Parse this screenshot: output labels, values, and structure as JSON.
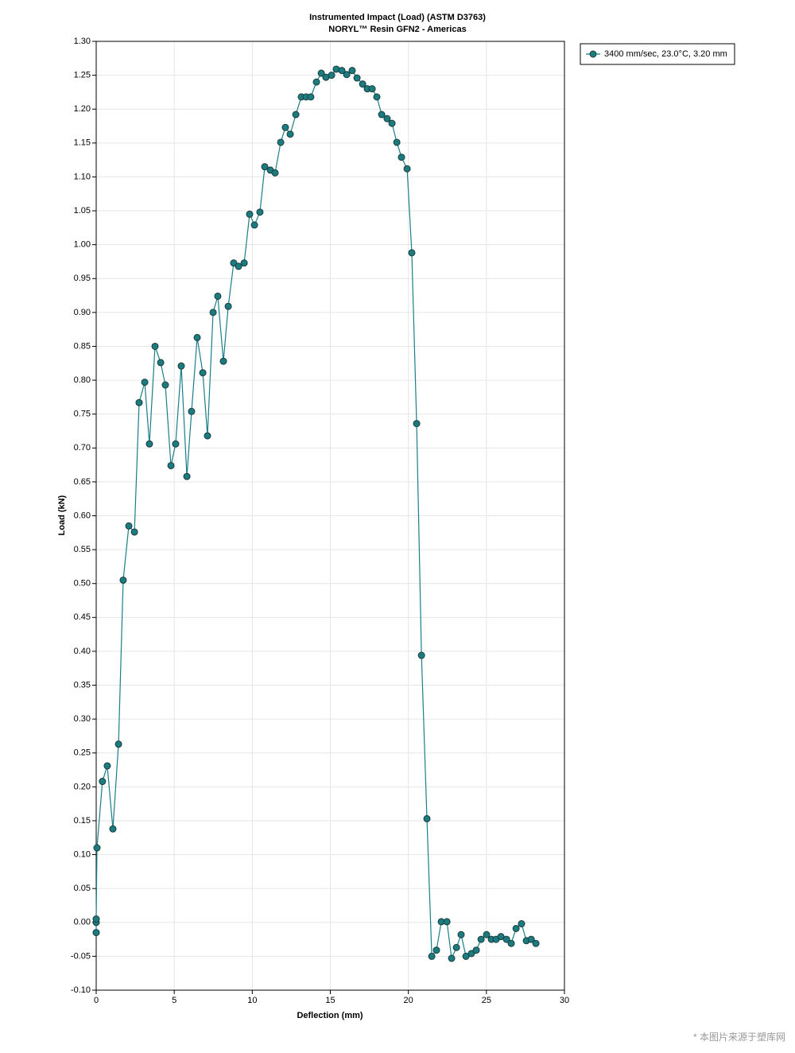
{
  "chart_data": {
    "type": "line",
    "title": "Instrumented Impact (Load) (ASTM D3763)",
    "subtitle": "NORYL™ Resin GFN2 - Americas",
    "x_label": "Deflection (mm)",
    "y_label": "Load (kN)",
    "x": [
      0,
      0,
      0,
      0.05,
      0.4,
      0.71,
      1.07,
      1.43,
      1.73,
      2.09,
      2.45,
      2.75,
      3.11,
      3.41,
      3.77,
      4.13,
      4.43,
      4.79,
      5.09,
      5.45,
      5.81,
      6.11,
      6.47,
      6.83,
      7.13,
      7.49,
      7.79,
      8.15,
      8.46,
      8.81,
      9.12,
      9.48,
      9.83,
      10.14,
      10.49,
      10.8,
      11.16,
      11.46,
      11.82,
      12.12,
      12.43,
      12.79,
      13.14,
      13.45,
      13.75,
      14.11,
      14.42,
      14.72,
      15.08,
      15.38,
      15.74,
      16.05,
      16.4,
      16.71,
      17.07,
      17.37,
      17.68,
      17.98,
      18.29,
      18.64,
      18.95,
      19.26,
      19.56,
      19.92,
      20.22,
      20.53,
      20.84,
      21.19,
      21.5,
      21.8,
      22.11,
      22.47,
      22.77,
      23.08,
      23.38,
      23.69,
      24.04,
      24.35,
      24.66,
      25.01,
      25.32,
      25.62,
      25.93,
      26.29,
      26.59,
      26.9,
      27.25,
      27.56,
      27.87,
      28.17
    ],
    "series": [
      {
        "name": "3400 mm/sec, 23.0°C, 3.20 mm",
        "color": "#1a7f86",
        "marker_color": "#1b7c80",
        "values": [
          -0.015,
          0.0,
          0.005,
          0.11,
          0.208,
          0.231,
          0.138,
          0.263,
          0.505,
          0.585,
          0.576,
          0.767,
          0.797,
          0.706,
          0.85,
          0.826,
          0.793,
          0.674,
          0.706,
          0.821,
          0.658,
          0.754,
          0.863,
          0.811,
          0.718,
          0.9,
          0.924,
          0.828,
          0.909,
          0.973,
          0.968,
          0.973,
          1.045,
          1.029,
          1.048,
          1.115,
          1.11,
          1.106,
          1.151,
          1.173,
          1.163,
          1.192,
          1.218,
          1.218,
          1.218,
          1.24,
          1.253,
          1.247,
          1.25,
          1.259,
          1.257,
          1.251,
          1.257,
          1.246,
          1.237,
          1.23,
          1.23,
          1.218,
          1.192,
          1.186,
          1.179,
          1.151,
          1.129,
          1.112,
          0.988,
          0.736,
          0.394,
          0.153,
          -0.05,
          -0.041,
          0.001,
          0.001,
          -0.053,
          -0.037,
          -0.018,
          -0.05,
          -0.046,
          -0.041,
          -0.025,
          -0.018,
          -0.025,
          -0.025,
          -0.021,
          -0.025,
          -0.031,
          -0.009,
          -0.002,
          -0.027,
          -0.025,
          -0.031
        ]
      }
    ],
    "xlim": [
      0,
      30
    ],
    "xticks": [
      0,
      5,
      10,
      15,
      20,
      25,
      30
    ],
    "ylim": [
      -0.1,
      1.3
    ],
    "yticks": [
      {
        "value": -0.1,
        "label": "-0.10"
      },
      {
        "value": -0.05,
        "label": "-0.05"
      },
      {
        "value": 0,
        "label": "0.00"
      },
      {
        "value": 0.05,
        "label": "0.05"
      },
      {
        "value": 0.1,
        "label": "0.10"
      },
      {
        "value": 0.15,
        "label": "0.15"
      },
      {
        "value": 0.2,
        "label": "0.20"
      },
      {
        "value": 0.25,
        "label": "0.25"
      },
      {
        "value": 0.3,
        "label": "0.30"
      },
      {
        "value": 0.35,
        "label": "0.35"
      },
      {
        "value": 0.4,
        "label": "0.40"
      },
      {
        "value": 0.45,
        "label": "0.45"
      },
      {
        "value": 0.5,
        "label": "0.50"
      },
      {
        "value": 0.55,
        "label": "0.55"
      },
      {
        "value": 0.6,
        "label": "0.60"
      },
      {
        "value": 0.65,
        "label": "0.65"
      },
      {
        "value": 0.7,
        "label": "0.70"
      },
      {
        "value": 0.75,
        "label": "0.75"
      },
      {
        "value": 0.8,
        "label": "0.80"
      },
      {
        "value": 0.85,
        "label": "0.85"
      },
      {
        "value": 0.9,
        "label": "0.90"
      },
      {
        "value": 0.95,
        "label": "0.95"
      },
      {
        "value": 1.0,
        "label": "1.00"
      },
      {
        "value": 1.05,
        "label": "1.05"
      },
      {
        "value": 1.1,
        "label": "1.10"
      },
      {
        "value": 1.15,
        "label": "1.15"
      },
      {
        "value": 1.2,
        "label": "1.20"
      },
      {
        "value": 1.25,
        "label": "1.25"
      },
      {
        "value": 1.3,
        "label": "1.30"
      }
    ],
    "grid": true,
    "legend": "outside-top-right"
  },
  "watermark": "* 本图片来源于塑库网"
}
